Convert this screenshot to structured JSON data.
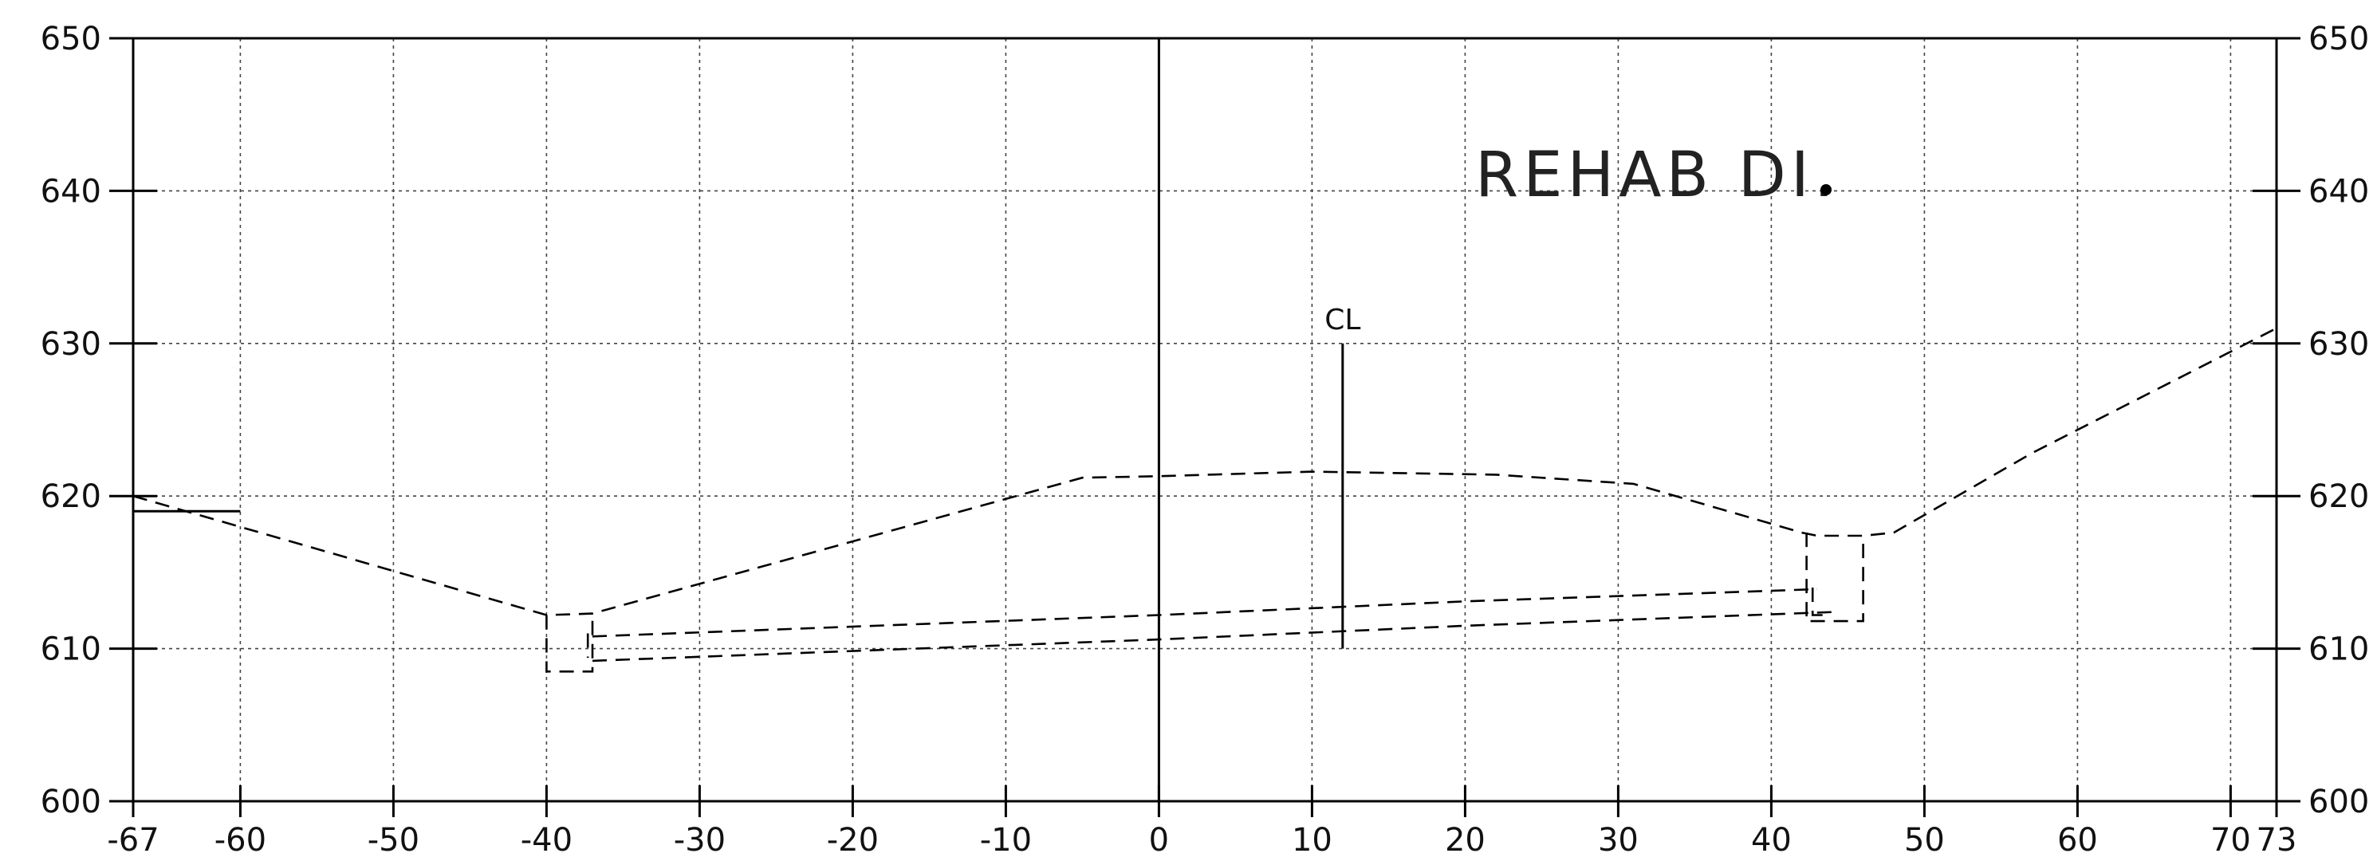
{
  "title": "REHAB DI.",
  "centerline_label": "CL",
  "chart_data": {
    "type": "line",
    "title": "REHAB DI.",
    "xlabel": "",
    "ylabel": "",
    "xlim": [
      -67,
      73
    ],
    "ylim": [
      600,
      650
    ],
    "grid": true,
    "x_ticks": [
      -67,
      -60,
      -50,
      -40,
      -30,
      -20,
      -10,
      0,
      10,
      20,
      30,
      40,
      50,
      60,
      70,
      73
    ],
    "y_ticks": [
      600,
      610,
      620,
      630,
      640,
      650
    ],
    "series": [
      {
        "style": "dashed",
        "points": [
          [
            -67,
            620
          ],
          [
            -40,
            612.2
          ],
          [
            -37,
            612.3
          ],
          [
            -5,
            621.2
          ],
          [
            0,
            621.3
          ],
          [
            10,
            621.6
          ],
          [
            22,
            621.4
          ],
          [
            31,
            620.8
          ],
          [
            42,
            617.6
          ],
          [
            43,
            617.4
          ],
          [
            46,
            617.4
          ],
          [
            48,
            617.6
          ],
          [
            57,
            622.8
          ],
          [
            73,
            631
          ]
        ]
      },
      {
        "style": "dashed",
        "points": [
          [
            -37,
            610.8
          ],
          [
            0,
            612.2
          ],
          [
            20,
            613.1
          ],
          [
            43,
            613.9
          ]
        ]
      },
      {
        "style": "dashed",
        "points": [
          [
            -37,
            609.2
          ],
          [
            0,
            610.6
          ],
          [
            20,
            611.5
          ],
          [
            44,
            612.4
          ]
        ]
      },
      {
        "style": "dashed",
        "points": [
          [
            -40,
            612.2
          ],
          [
            -40,
            608.5
          ],
          [
            -37,
            608.5
          ],
          [
            -37,
            612.3
          ]
        ]
      },
      {
        "style": "dashed",
        "points": [
          [
            42.3,
            617.6
          ],
          [
            42.3,
            611.8
          ],
          [
            46,
            611.8
          ],
          [
            46,
            617.4
          ]
        ]
      },
      {
        "style": "dashed",
        "points": [
          [
            42.7,
            614
          ],
          [
            42.7,
            612.2
          ],
          [
            43.5,
            612.2
          ]
        ]
      },
      {
        "style": "dashed",
        "points": [
          [
            -37.3,
            611
          ],
          [
            -37.3,
            609.4
          ]
        ]
      },
      {
        "style": "solid",
        "points": [
          [
            -67,
            619
          ],
          [
            -60,
            619
          ]
        ]
      },
      {
        "style": "solid",
        "points": [
          [
            12,
            630
          ],
          [
            12,
            610
          ]
        ]
      }
    ]
  }
}
